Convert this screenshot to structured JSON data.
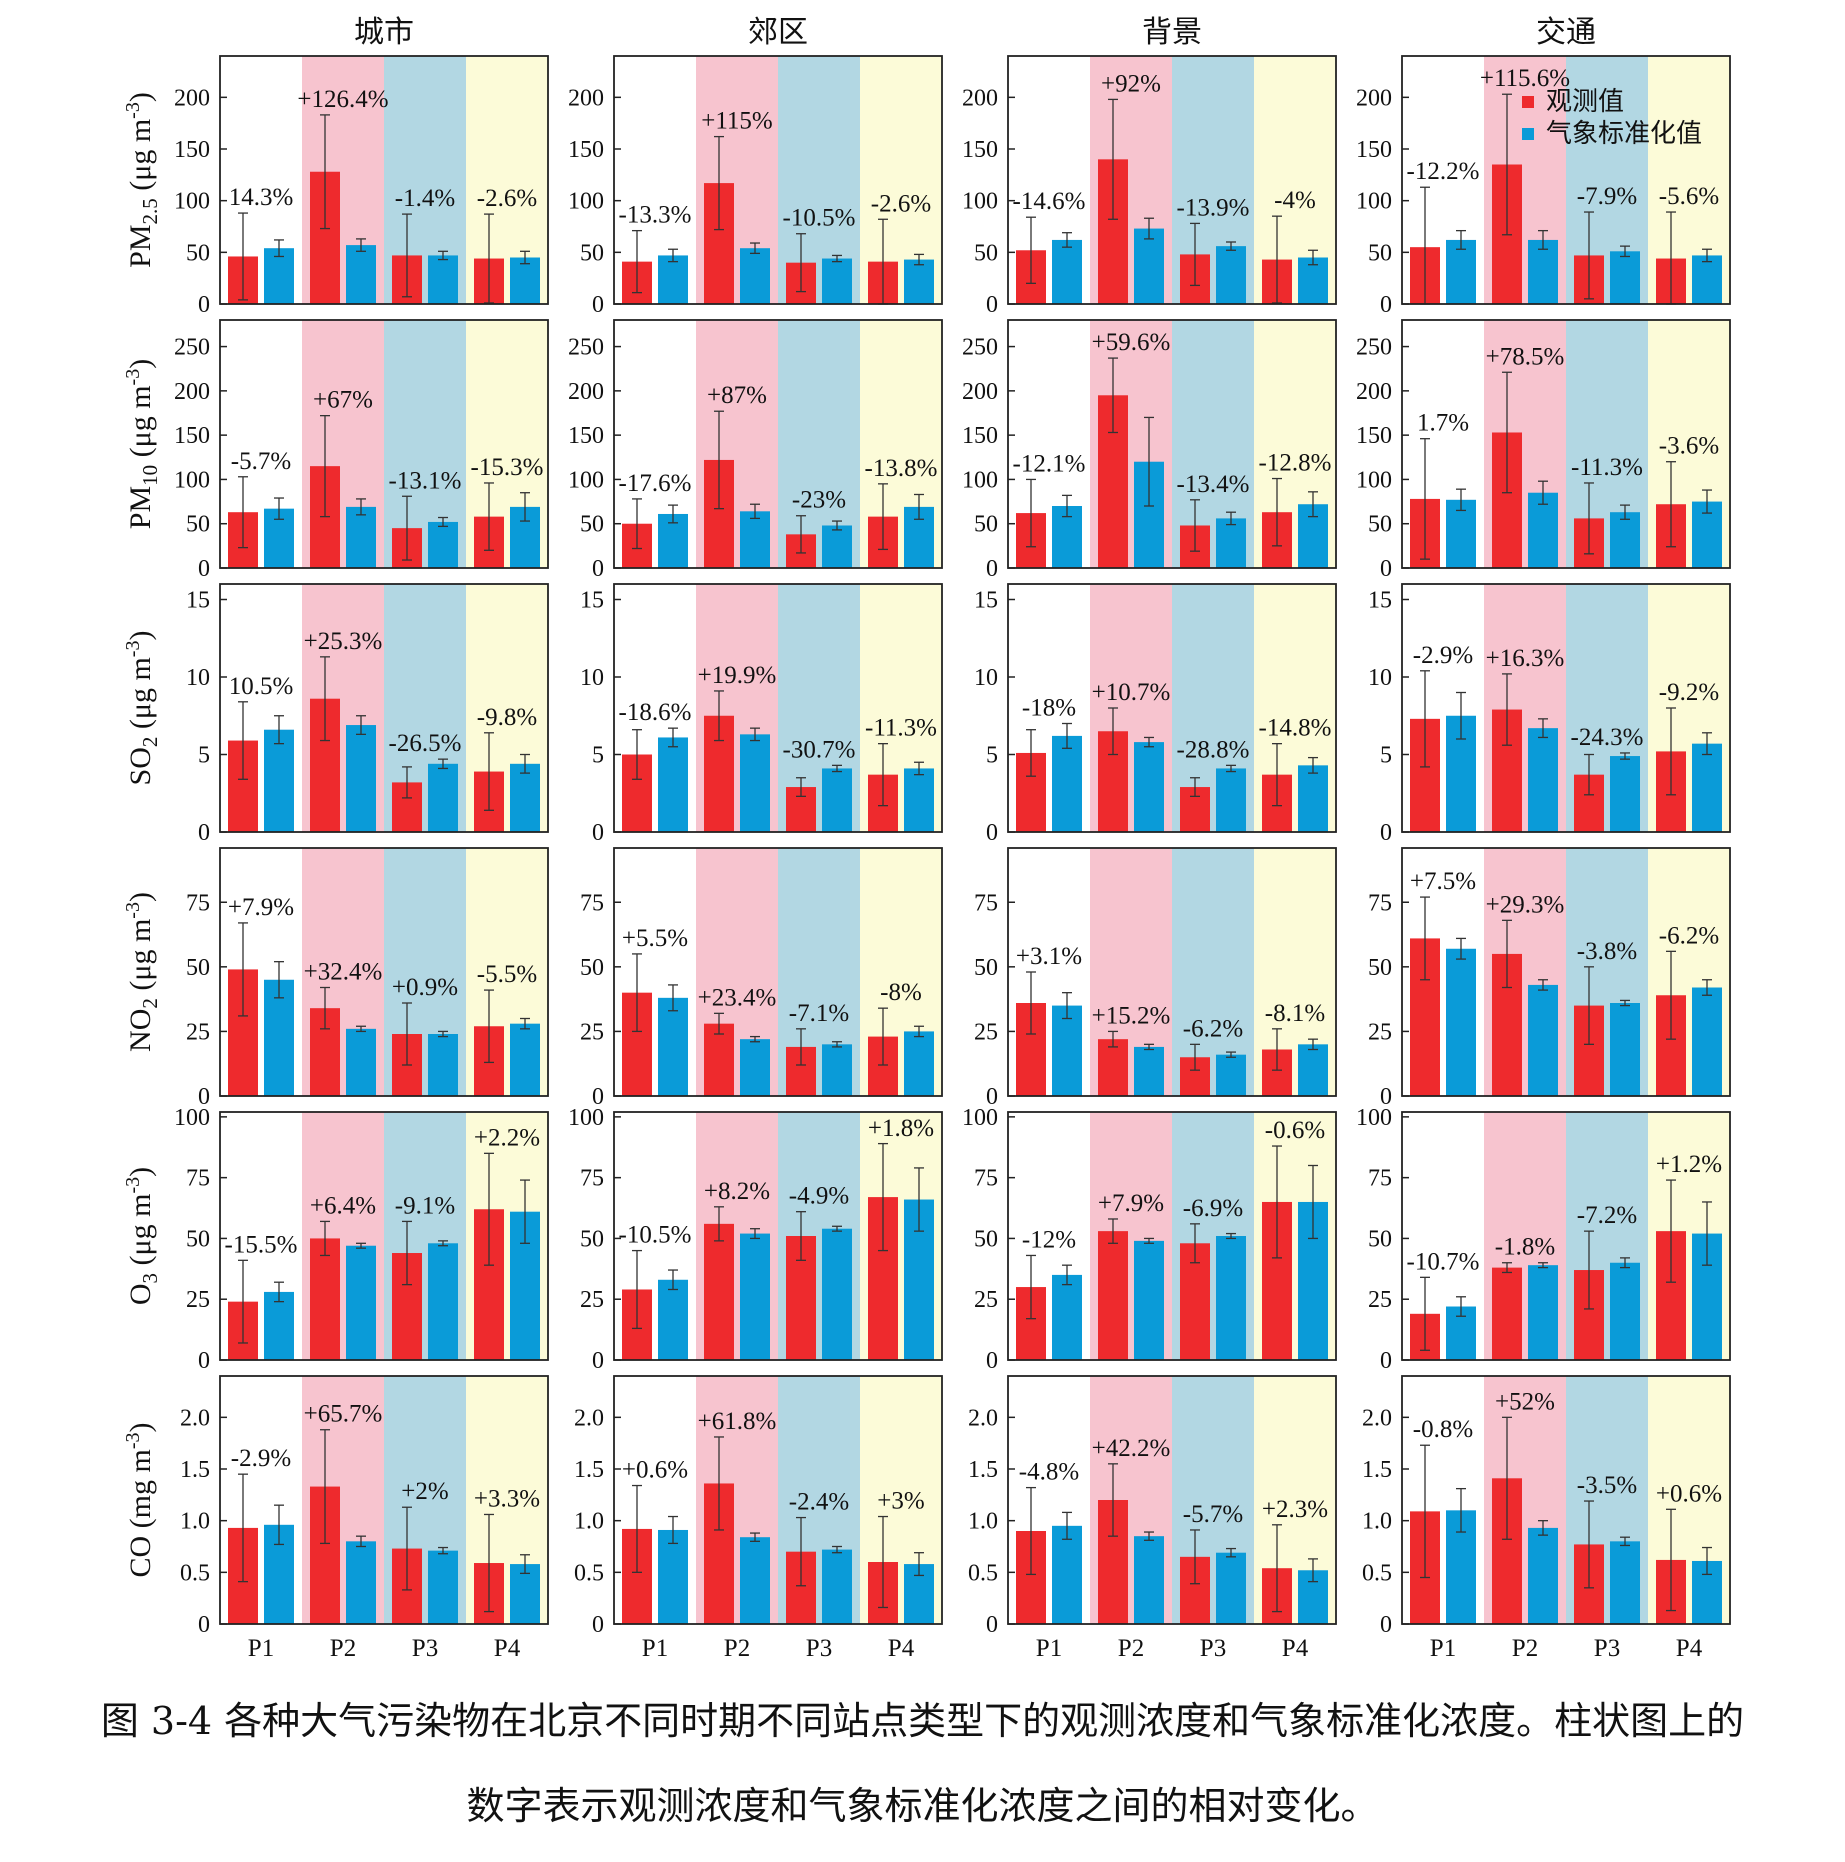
{
  "caption": {
    "line1": "图 3-4 各种大气污染物在北京不同时期不同站点类型下的观测浓度和气象标准化浓度。柱状图上的",
    "line2": "数字表示观测浓度和气象标准化浓度之间的相对变化。"
  },
  "colors": {
    "observed": "#EE2A2D",
    "normalized": "#0A9BD8",
    "bg_P1": "#FFFFFF",
    "bg_P2": "#F7C4CF",
    "bg_P3": "#B2D7E3",
    "bg_P4": "#FCFBD8"
  },
  "chart_data": {
    "type": "bar",
    "layout": "grid of 6 rows (pollutants) x 4 columns (site types)",
    "columns": [
      "城市",
      "郊区",
      "背景",
      "交通"
    ],
    "categories": [
      "P1",
      "P2",
      "P3",
      "P4"
    ],
    "legend": {
      "placement": "top-right of 交通 PM2.5 panel",
      "entries": [
        "观测值",
        "气象标准化值"
      ]
    },
    "rows": [
      {
        "pollutant": "PM",
        "sub": "2.5",
        "unit": "(μg m",
        "unit_sup": "-3",
        "unit_close": ")",
        "ylim": [
          0,
          240
        ],
        "yticks": [
          0,
          50,
          100,
          150,
          200
        ],
        "yticklabels": [
          "0",
          "50",
          "100",
          "150",
          "200"
        ],
        "panels": [
          {
            "observed": [
              46,
              128,
              47,
              44
            ],
            "observed_err": [
              42,
              55,
              40,
              43
            ],
            "normalized": [
              54,
              57,
              47,
              45
            ],
            "normalized_err": [
              8,
              6,
              4,
              6
            ],
            "labels": [
              "14.3%",
              "+126.4%",
              "-1.4%",
              "-2.6%"
            ]
          },
          {
            "observed": [
              41,
              117,
              40,
              41
            ],
            "observed_err": [
              30,
              45,
              28,
              41
            ],
            "normalized": [
              47,
              54,
              44,
              43
            ],
            "normalized_err": [
              6,
              5,
              3,
              5
            ],
            "labels": [
              "-13.3%",
              "+115%",
              "-10.5%",
              "-2.6%"
            ]
          },
          {
            "observed": [
              52,
              140,
              48,
              43
            ],
            "observed_err": [
              32,
              58,
              30,
              42
            ],
            "normalized": [
              62,
              73,
              56,
              45
            ],
            "normalized_err": [
              7,
              10,
              4,
              7
            ],
            "labels": [
              "-14.6%",
              "+92%",
              "-13.9%",
              "-4%"
            ]
          },
          {
            "observed": [
              55,
              135,
              47,
              44
            ],
            "observed_err": [
              58,
              68,
              42,
              45
            ],
            "normalized": [
              62,
              62,
              51,
              47
            ],
            "normalized_err": [
              9,
              9,
              5,
              6
            ],
            "labels": [
              "-12.2%",
              "+115.6%",
              "-7.9%",
              "-5.6%"
            ]
          }
        ]
      },
      {
        "pollutant": "PM",
        "sub": "10",
        "unit": "(μg m",
        "unit_sup": "-3",
        "unit_close": ")",
        "ylim": [
          0,
          280
        ],
        "yticks": [
          0,
          50,
          100,
          150,
          200,
          250
        ],
        "yticklabels": [
          "0",
          "50",
          "100",
          "150",
          "200",
          "250"
        ],
        "panels": [
          {
            "observed": [
              63,
              115,
              45,
              58
            ],
            "observed_err": [
              40,
              57,
              36,
              38
            ],
            "normalized": [
              67,
              69,
              52,
              69
            ],
            "normalized_err": [
              12,
              9,
              5,
              16
            ],
            "labels": [
              "-5.7%",
              "+67%",
              "-13.1%",
              "-15.3%"
            ]
          },
          {
            "observed": [
              50,
              122,
              38,
              58
            ],
            "observed_err": [
              28,
              55,
              21,
              37
            ],
            "normalized": [
              61,
              64,
              48,
              69
            ],
            "normalized_err": [
              10,
              8,
              5,
              14
            ],
            "labels": [
              "-17.6%",
              "+87%",
              "-23%",
              "-13.8%"
            ]
          },
          {
            "observed": [
              62,
              195,
              48,
              63
            ],
            "observed_err": [
              38,
              42,
              29,
              38
            ],
            "normalized": [
              70,
              120,
              56,
              72
            ],
            "normalized_err": [
              12,
              50,
              7,
              14
            ],
            "labels": [
              "-12.1%",
              "+59.6%",
              "-13.4%",
              "-12.8%"
            ]
          },
          {
            "observed": [
              78,
              153,
              56,
              72
            ],
            "observed_err": [
              68,
              68,
              40,
              48
            ],
            "normalized": [
              77,
              85,
              63,
              75
            ],
            "normalized_err": [
              12,
              13,
              8,
              13
            ],
            "labels": [
              "1.7%",
              "+78.5%",
              "-11.3%",
              "-3.6%"
            ]
          }
        ]
      },
      {
        "pollutant": "SO",
        "sub": "2",
        "unit": "(μg m",
        "unit_sup": "-3",
        "unit_close": ")",
        "ylim": [
          0,
          16
        ],
        "yticks": [
          0,
          5,
          10,
          15
        ],
        "yticklabels": [
          "0",
          "5",
          "10",
          "15"
        ],
        "panels": [
          {
            "observed": [
              5.9,
              8.6,
              3.2,
              3.9
            ],
            "observed_err": [
              2.5,
              2.7,
              1.0,
              2.5
            ],
            "normalized": [
              6.6,
              6.9,
              4.4,
              4.4
            ],
            "normalized_err": [
              0.9,
              0.6,
              0.3,
              0.6
            ],
            "labels": [
              "10.5%",
              "+25.3%",
              "-26.5%",
              "-9.8%"
            ]
          },
          {
            "observed": [
              5.0,
              7.5,
              2.9,
              3.7
            ],
            "observed_err": [
              1.6,
              1.6,
              0.6,
              2.0
            ],
            "normalized": [
              6.1,
              6.3,
              4.1,
              4.1
            ],
            "normalized_err": [
              0.6,
              0.4,
              0.2,
              0.4
            ],
            "labels": [
              "-18.6%",
              "+19.9%",
              "-30.7%",
              "-11.3%"
            ]
          },
          {
            "observed": [
              5.1,
              6.5,
              2.9,
              3.7
            ],
            "observed_err": [
              1.5,
              1.5,
              0.6,
              2.0
            ],
            "normalized": [
              6.2,
              5.8,
              4.1,
              4.3
            ],
            "normalized_err": [
              0.8,
              0.3,
              0.2,
              0.5
            ],
            "labels": [
              "-18%",
              "+10.7%",
              "-28.8%",
              "-14.8%"
            ]
          },
          {
            "observed": [
              7.3,
              7.9,
              3.7,
              5.2
            ],
            "observed_err": [
              3.1,
              2.3,
              1.3,
              2.8
            ],
            "normalized": [
              7.5,
              6.7,
              4.9,
              5.7
            ],
            "normalized_err": [
              1.5,
              0.6,
              0.2,
              0.7
            ],
            "labels": [
              "-2.9%",
              "+16.3%",
              "-24.3%",
              "-9.2%"
            ]
          }
        ]
      },
      {
        "pollutant": "NO",
        "sub": "2",
        "unit": "(μg m",
        "unit_sup": "-3",
        "unit_close": ")",
        "ylim": [
          0,
          96
        ],
        "yticks": [
          0,
          25,
          50,
          75
        ],
        "yticklabels": [
          "0",
          "25",
          "50",
          "75"
        ],
        "panels": [
          {
            "observed": [
              49,
              34,
              24,
              27
            ],
            "observed_err": [
              18,
              8,
              12,
              14
            ],
            "normalized": [
              45,
              26,
              24,
              28
            ],
            "normalized_err": [
              7,
              1,
              1,
              2
            ],
            "labels": [
              "+7.9%",
              "+32.4%",
              "+0.9%",
              "-5.5%"
            ]
          },
          {
            "observed": [
              40,
              28,
              19,
              23
            ],
            "observed_err": [
              15,
              4,
              7,
              11
            ],
            "normalized": [
              38,
              22,
              20,
              25
            ],
            "normalized_err": [
              5,
              1,
              1,
              2
            ],
            "labels": [
              "+5.5%",
              "+23.4%",
              "-7.1%",
              "-8%"
            ]
          },
          {
            "observed": [
              36,
              22,
              15,
              18
            ],
            "observed_err": [
              12,
              3,
              5,
              8
            ],
            "normalized": [
              35,
              19,
              16,
              20
            ],
            "normalized_err": [
              5,
              1,
              1,
              2
            ],
            "labels": [
              "+3.1%",
              "+15.2%",
              "-6.2%",
              "-8.1%"
            ]
          },
          {
            "observed": [
              61,
              55,
              35,
              39
            ],
            "observed_err": [
              16,
              13,
              15,
              17
            ],
            "normalized": [
              57,
              43,
              36,
              42
            ],
            "normalized_err": [
              4,
              2,
              1,
              3
            ],
            "labels": [
              "+7.5%",
              "+29.3%",
              "-3.8%",
              "-6.2%"
            ]
          }
        ]
      },
      {
        "pollutant": "O",
        "sub": "3",
        "unit": "(μg m",
        "unit_sup": "-3",
        "unit_close": ")",
        "ylim": [
          0,
          102
        ],
        "yticks": [
          0,
          25,
          50,
          75,
          100
        ],
        "yticklabels": [
          "0",
          "25",
          "50",
          "75",
          "100"
        ],
        "panels": [
          {
            "observed": [
              24,
              50,
              44,
              62
            ],
            "observed_err": [
              17,
              7,
              13,
              23
            ],
            "normalized": [
              28,
              47,
              48,
              61
            ],
            "normalized_err": [
              4,
              1,
              1,
              13
            ],
            "labels": [
              "-15.5%",
              "+6.4%",
              "-9.1%",
              "+2.2%"
            ]
          },
          {
            "observed": [
              29,
              56,
              51,
              67
            ],
            "observed_err": [
              16,
              7,
              10,
              22
            ],
            "normalized": [
              33,
              52,
              54,
              66
            ],
            "normalized_err": [
              4,
              2,
              1,
              13
            ],
            "labels": [
              "-10.5%",
              "+8.2%",
              "-4.9%",
              "+1.8%"
            ]
          },
          {
            "observed": [
              30,
              53,
              48,
              65
            ],
            "observed_err": [
              13,
              5,
              8,
              23
            ],
            "normalized": [
              35,
              49,
              51,
              65
            ],
            "normalized_err": [
              4,
              1,
              1,
              15
            ],
            "labels": [
              "-12%",
              "+7.9%",
              "-6.9%",
              "-0.6%"
            ]
          },
          {
            "observed": [
              19,
              38,
              37,
              53
            ],
            "observed_err": [
              15,
              2,
              16,
              21
            ],
            "normalized": [
              22,
              39,
              40,
              52
            ],
            "normalized_err": [
              4,
              1,
              2,
              13
            ],
            "labels": [
              "-10.7%",
              "-1.8%",
              "-7.2%",
              "+1.2%"
            ]
          }
        ]
      },
      {
        "pollutant": "CO",
        "sub": "",
        "unit": "(mg m",
        "unit_sup": "-3",
        "unit_close": ")",
        "ylim": [
          0,
          2.4
        ],
        "yticks": [
          0,
          0.5,
          1.0,
          1.5,
          2.0
        ],
        "yticklabels": [
          "0",
          "0.5",
          "1.0",
          "1.5",
          "2.0"
        ],
        "panels": [
          {
            "observed": [
              0.93,
              1.33,
              0.73,
              0.59
            ],
            "observed_err": [
              0.52,
              0.55,
              0.4,
              0.47
            ],
            "normalized": [
              0.96,
              0.8,
              0.71,
              0.58
            ],
            "normalized_err": [
              0.19,
              0.05,
              0.03,
              0.09
            ],
            "labels": [
              "-2.9%",
              "+65.7%",
              "+2%",
              "+3.3%"
            ]
          },
          {
            "observed": [
              0.92,
              1.36,
              0.7,
              0.6
            ],
            "observed_err": [
              0.42,
              0.45,
              0.33,
              0.44
            ],
            "normalized": [
              0.91,
              0.84,
              0.72,
              0.58
            ],
            "normalized_err": [
              0.13,
              0.04,
              0.03,
              0.11
            ],
            "labels": [
              "+0.6%",
              "+61.8%",
              "-2.4%",
              "+3%"
            ]
          },
          {
            "observed": [
              0.9,
              1.2,
              0.65,
              0.54
            ],
            "observed_err": [
              0.42,
              0.35,
              0.26,
              0.42
            ],
            "normalized": [
              0.95,
              0.85,
              0.69,
              0.52
            ],
            "normalized_err": [
              0.13,
              0.04,
              0.04,
              0.11
            ],
            "labels": [
              "-4.8%",
              "+42.2%",
              "-5.7%",
              "+2.3%"
            ]
          },
          {
            "observed": [
              1.09,
              1.41,
              0.77,
              0.62
            ],
            "observed_err": [
              0.64,
              0.59,
              0.42,
              0.49
            ],
            "normalized": [
              1.1,
              0.93,
              0.8,
              0.61
            ],
            "normalized_err": [
              0.21,
              0.07,
              0.04,
              0.13
            ],
            "labels": [
              "-0.8%",
              "+52%",
              "-3.5%",
              "+0.6%"
            ]
          }
        ]
      }
    ]
  }
}
